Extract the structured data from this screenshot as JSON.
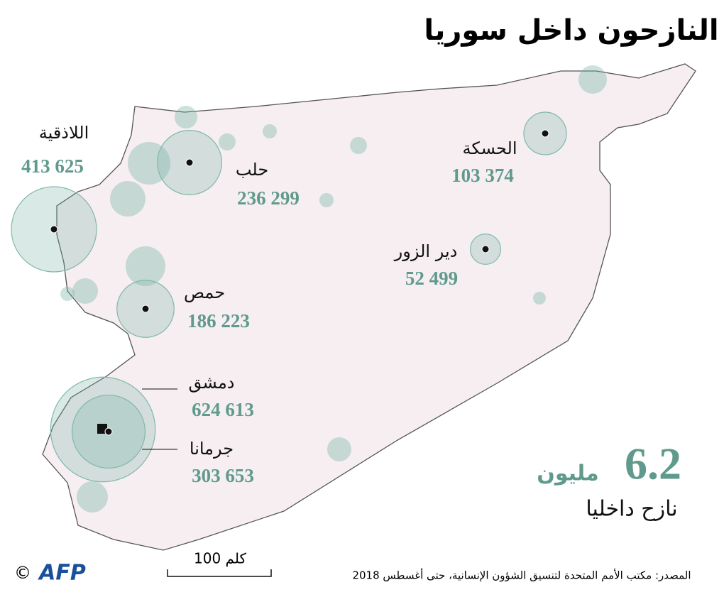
{
  "title": "النازحون داخل سوريا",
  "cities": [
    {
      "name": "اللاذقية",
      "value": 413625,
      "value_label": "413 625"
    },
    {
      "name": "حلب",
      "value": 236299,
      "value_label": "236 299"
    },
    {
      "name": "حمص",
      "value": 186223,
      "value_label": "186 223"
    },
    {
      "name": "دمشق",
      "value": 624613,
      "value_label": "624 613"
    },
    {
      "name": "جرمانا",
      "value": 303653,
      "value_label": "303 653"
    },
    {
      "name": "الحسكة",
      "value": 103374,
      "value_label": "103 374"
    },
    {
      "name": "دير الزور",
      "value": 52499,
      "value_label": "52 499"
    }
  ],
  "total": {
    "value": 6.2,
    "unit": "مليون",
    "caption": "نازح داخليا"
  },
  "scale": "100 كلم",
  "source": "المصدر: مكتب الأمم المتحدة لتنسيق الشؤون الإنسانية، حتى أغسطس 2018",
  "credit": {
    "copyright": "©",
    "agency": "AFP"
  }
}
